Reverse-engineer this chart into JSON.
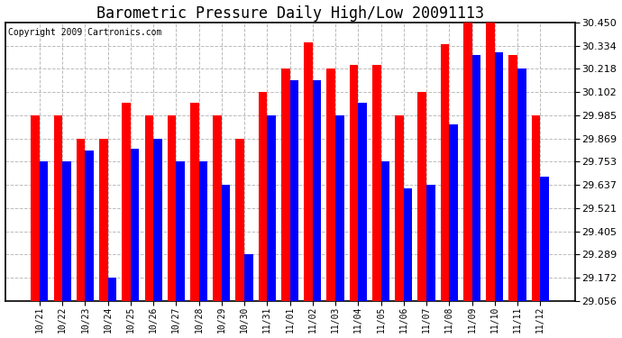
{
  "title": "Barometric Pressure Daily High/Low 20091113",
  "copyright": "Copyright 2009 Cartronics.com",
  "labels": [
    "10/21",
    "10/22",
    "10/23",
    "10/24",
    "10/25",
    "10/26",
    "10/27",
    "10/28",
    "10/29",
    "10/30",
    "11/31",
    "11/01",
    "11/02",
    "11/03",
    "11/04",
    "11/05",
    "11/06",
    "11/07",
    "11/08",
    "11/09",
    "11/10",
    "11/11",
    "11/12"
  ],
  "highs": [
    29.985,
    29.985,
    29.869,
    29.869,
    30.05,
    29.985,
    29.985,
    30.05,
    29.985,
    29.869,
    30.102,
    30.218,
    30.35,
    30.218,
    30.24,
    30.24,
    29.985,
    30.102,
    30.34,
    30.45,
    30.45,
    30.29,
    29.985
  ],
  "lows": [
    29.753,
    29.753,
    29.81,
    29.172,
    29.82,
    29.869,
    29.753,
    29.753,
    29.637,
    29.289,
    29.985,
    30.16,
    30.16,
    29.985,
    30.05,
    29.753,
    29.62,
    29.637,
    29.94,
    30.29,
    30.3,
    30.218,
    29.68
  ],
  "ylim_min": 29.056,
  "ylim_max": 30.45,
  "yticks": [
    29.056,
    29.172,
    29.289,
    29.405,
    29.521,
    29.637,
    29.753,
    29.869,
    29.985,
    30.102,
    30.218,
    30.334,
    30.45
  ],
  "bar_width": 0.38,
  "high_color": "#ff0000",
  "low_color": "#0000ff",
  "bg_color": "#ffffff",
  "grid_color": "#bbbbbb",
  "title_fontsize": 12,
  "copyright_fontsize": 7
}
